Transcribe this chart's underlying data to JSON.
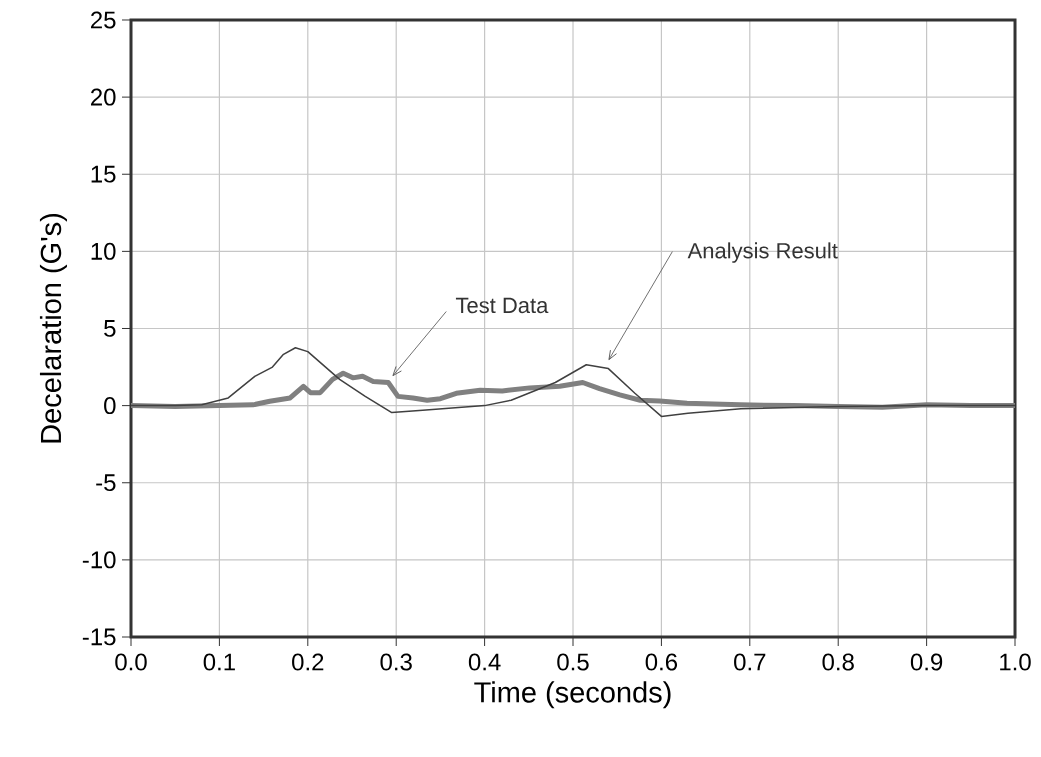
{
  "chart_data": {
    "type": "line",
    "xlabel": "Time (seconds)",
    "ylabel": "Decelaration (G's)",
    "xlim": [
      0,
      1
    ],
    "ylim": [
      -15,
      25
    ],
    "xticks": [
      {
        "value": 0,
        "label": "0.0"
      },
      {
        "value": 0.1,
        "label": "0.1"
      },
      {
        "value": 0.2,
        "label": "0.2"
      },
      {
        "value": 0.3,
        "label": "0.3"
      },
      {
        "value": 0.4,
        "label": "0.4"
      },
      {
        "value": 0.5,
        "label": "0.5"
      },
      {
        "value": 0.6,
        "label": "0.6"
      },
      {
        "value": 0.7,
        "label": "0.7"
      },
      {
        "value": 0.8,
        "label": "0.8"
      },
      {
        "value": 0.9,
        "label": "0.9"
      },
      {
        "value": 1,
        "label": "1.0"
      }
    ],
    "yticks": [
      -15,
      -10,
      -5,
      0,
      5,
      10,
      15,
      20,
      25
    ],
    "grid": true,
    "series": [
      {
        "color": "#808080",
        "x": [
          0,
          0.05,
          0.1,
          0.138,
          0.157,
          0.18,
          0.195,
          0.203,
          0.214,
          0.228,
          0.24,
          0.251,
          0.262,
          0.274,
          0.291,
          0.302,
          0.319,
          0.335,
          0.35,
          0.368,
          0.395,
          0.42,
          0.451,
          0.485,
          0.511,
          0.53,
          0.553,
          0.576,
          0.598,
          0.629,
          0.689,
          0.75,
          0.8,
          0.85,
          0.9,
          0.95,
          1.0
        ],
        "values": [
          0,
          -0.05,
          0,
          0.05,
          0.28,
          0.5,
          1.25,
          0.84,
          0.84,
          1.7,
          2.1,
          1.8,
          1.9,
          1.57,
          1.5,
          0.6,
          0.5,
          0.35,
          0.45,
          0.8,
          1.0,
          0.95,
          1.15,
          1.25,
          1.5,
          1.1,
          0.7,
          0.35,
          0.3,
          0.15,
          0.05,
          0,
          -0.05,
          -0.1,
          0.05,
          0,
          0
        ]
      },
      {
        "color": "#404040",
        "x": [
          0,
          0.05,
          0.08,
          0.11,
          0.14,
          0.16,
          0.172,
          0.186,
          0.2,
          0.236,
          0.265,
          0.295,
          0.33,
          0.4,
          0.43,
          0.48,
          0.515,
          0.54,
          0.57,
          0.6,
          0.63,
          0.69,
          0.8,
          0.9,
          1.0
        ],
        "values": [
          0,
          0,
          0.06,
          0.5,
          1.9,
          2.5,
          3.3,
          3.75,
          3.5,
          1.7,
          0.6,
          -0.45,
          -0.3,
          0,
          0.35,
          1.5,
          2.65,
          2.4,
          0.8,
          -0.7,
          -0.5,
          -0.2,
          -0.05,
          0,
          0
        ]
      }
    ],
    "annotations": [
      "Test Data",
      "Analysis Result"
    ]
  }
}
